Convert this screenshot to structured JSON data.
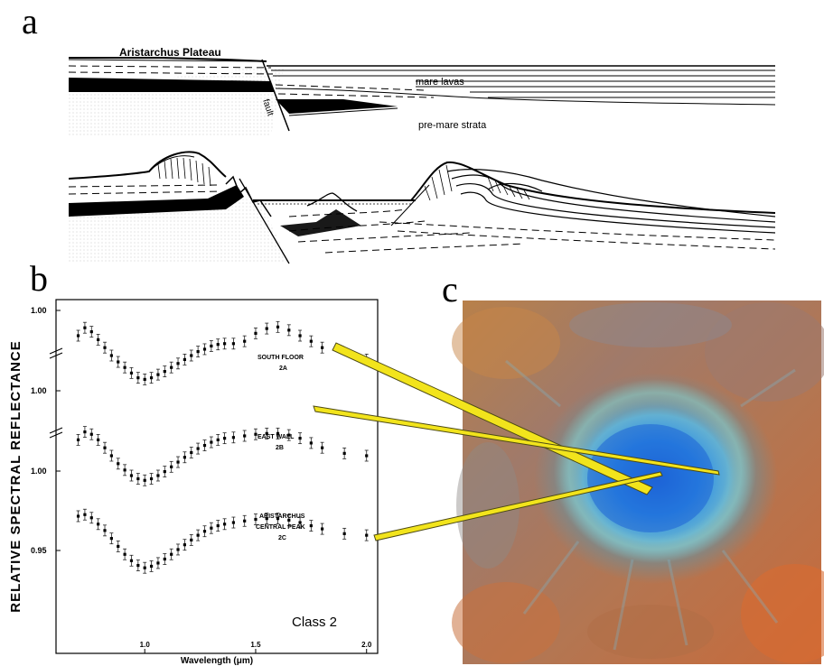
{
  "panels": {
    "a": {
      "letter": "a",
      "labels": {
        "plateau": "Aristarchus Plateau",
        "mare": "mare lavas",
        "premare": "pre-mare strata",
        "fault": "fault"
      }
    },
    "b": {
      "letter": "b",
      "ylabel": "RELATIVE SPECTRAL REFLECTANCE",
      "xlabel": "Wavelength (μm)",
      "class_label": "Class 2",
      "series_labels": {
        "s2a_line1": "SOUTH FLOOR",
        "s2a_line2": "2A",
        "s2b_line1": "EAST WALL",
        "s2b_line2": "2B",
        "s2c_line1": "ARISTARCHUS",
        "s2c_line2": "CENTRAL PEAK",
        "s2c_line3": "2C"
      },
      "ytick_labels": [
        "1.00",
        "1.00",
        "1.00",
        "0.95"
      ],
      "xtick_labels": [
        "1.0",
        "1.5",
        "2.0"
      ]
    },
    "c": {
      "letter": "c"
    }
  },
  "chart_data": {
    "type": "scatter",
    "title": "",
    "xlabel": "Wavelength (μm)",
    "ylabel": "RELATIVE SPECTRAL REFLECTANCE",
    "xlim": [
      0.6,
      2.05
    ],
    "x_ticks": [
      1.0,
      1.5,
      2.0
    ],
    "annotation": "Class 2",
    "series": [
      {
        "name": "SOUTH FLOOR 2A",
        "offset_level": 0,
        "x": [
          0.7,
          0.73,
          0.76,
          0.79,
          0.82,
          0.85,
          0.88,
          0.91,
          0.94,
          0.97,
          1.0,
          1.03,
          1.06,
          1.09,
          1.12,
          1.15,
          1.18,
          1.21,
          1.24,
          1.27,
          1.3,
          1.33,
          1.36,
          1.4,
          1.45,
          1.5,
          1.55,
          1.6,
          1.65,
          1.7,
          1.75,
          1.8,
          2.0
        ],
        "y": [
          1.025,
          1.035,
          1.03,
          1.02,
          1.01,
          1.0,
          0.992,
          0.985,
          0.978,
          0.972,
          0.97,
          0.972,
          0.976,
          0.98,
          0.985,
          0.99,
          0.995,
          1.0,
          1.005,
          1.008,
          1.012,
          1.014,
          1.015,
          1.015,
          1.018,
          1.028,
          1.034,
          1.036,
          1.032,
          1.025,
          1.018,
          1.01,
          0.995
        ]
      },
      {
        "name": "EAST WALL 2B",
        "offset_level": 1,
        "x": [
          0.7,
          0.73,
          0.76,
          0.79,
          0.82,
          0.85,
          0.88,
          0.91,
          0.94,
          0.97,
          1.0,
          1.03,
          1.06,
          1.09,
          1.12,
          1.15,
          1.18,
          1.21,
          1.24,
          1.27,
          1.3,
          1.33,
          1.36,
          1.4,
          1.45,
          1.5,
          1.55,
          1.6,
          1.65,
          1.7,
          1.75,
          1.8,
          1.9,
          2.0
        ],
        "y": [
          0.995,
          1.005,
          1.002,
          0.995,
          0.985,
          0.975,
          0.965,
          0.957,
          0.95,
          0.946,
          0.944,
          0.946,
          0.95,
          0.955,
          0.961,
          0.967,
          0.973,
          0.979,
          0.984,
          0.988,
          0.992,
          0.995,
          0.997,
          0.998,
          1.0,
          1.002,
          1.003,
          1.003,
          1.001,
          0.997,
          0.991,
          0.985,
          0.978,
          0.975
        ]
      },
      {
        "name": "ARISTARCHUS CENTRAL PEAK 2C",
        "offset_level": 2,
        "x": [
          0.7,
          0.73,
          0.76,
          0.79,
          0.82,
          0.85,
          0.88,
          0.91,
          0.94,
          0.97,
          1.0,
          1.03,
          1.06,
          1.09,
          1.12,
          1.15,
          1.18,
          1.21,
          1.24,
          1.27,
          1.3,
          1.33,
          1.36,
          1.4,
          1.45,
          1.5,
          1.55,
          1.6,
          1.65,
          1.7,
          1.75,
          1.8,
          1.9,
          2.0
        ],
        "y": [
          1.0,
          1.002,
          0.998,
          0.99,
          0.982,
          0.972,
          0.962,
          0.952,
          0.944,
          0.938,
          0.935,
          0.937,
          0.941,
          0.946,
          0.952,
          0.958,
          0.964,
          0.97,
          0.976,
          0.981,
          0.985,
          0.988,
          0.99,
          0.992,
          0.994,
          0.996,
          0.997,
          0.997,
          0.995,
          0.992,
          0.988,
          0.984,
          0.978,
          0.976
        ]
      }
    ]
  }
}
